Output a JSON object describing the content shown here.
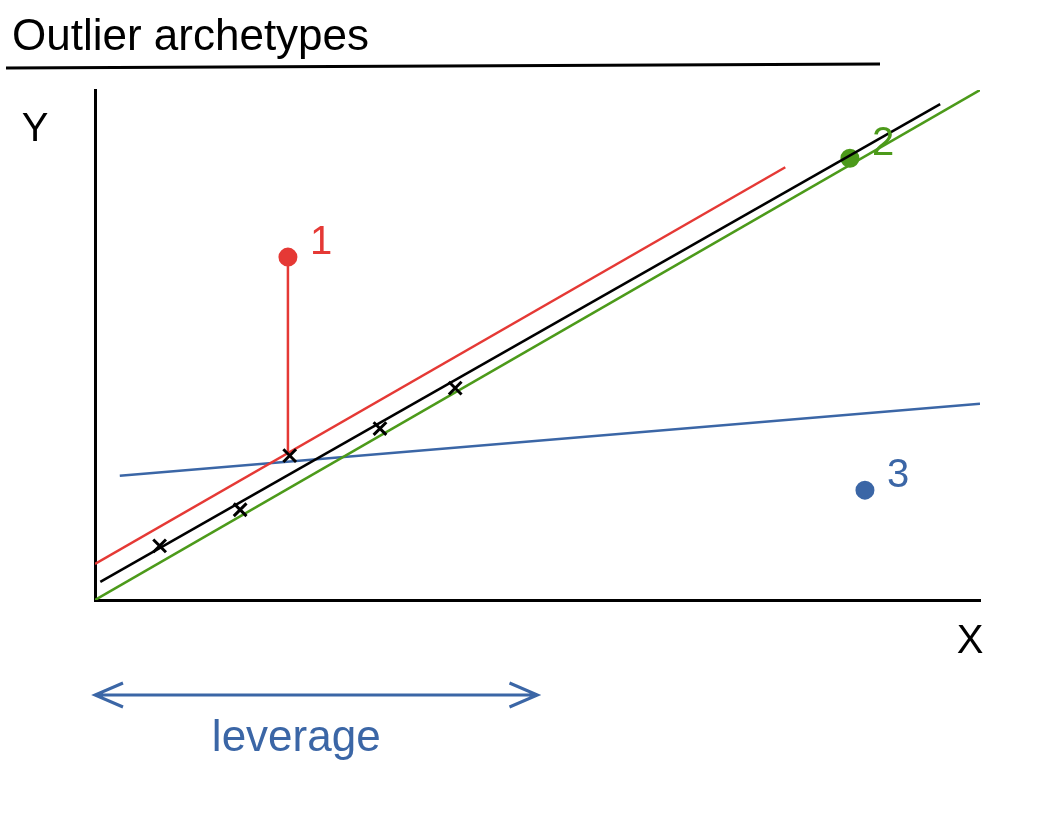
{
  "chart_data": {
    "type": "scatter",
    "title": "Outlier archetypes",
    "x_label": "X",
    "y_label": "Y",
    "xlim": [
      0,
      10
    ],
    "ylim": [
      0,
      13
    ],
    "grid": false,
    "tick_labels": false,
    "series": [
      {
        "color": "#000000",
        "marker": "x",
        "x": [
          0.73,
          1.64,
          2.2,
          3.22,
          4.07
        ],
        "values": [
          1.38,
          2.3,
          3.68,
          4.37,
          5.4
        ]
      },
      {
        "color": "#000000",
        "type": "line",
        "x": [
          0.06,
          9.55
        ],
        "values": [
          0.46,
          12.64
        ]
      },
      {
        "name": "1",
        "color": "#e53935",
        "marker": "circle",
        "x": [
          2.18
        ],
        "values": [
          8.74
        ]
      },
      {
        "color": "#e53935",
        "type": "line",
        "x": [
          2.18,
          2.18
        ],
        "values": [
          8.74,
          3.7
        ]
      },
      {
        "color": "#e53935",
        "type": "line",
        "x": [
          0,
          7.8
        ],
        "values": [
          0.92,
          11.03
        ]
      },
      {
        "name": "2",
        "color": "#4c9a1a",
        "marker": "circle",
        "x": [
          8.53
        ],
        "values": [
          11.26
        ]
      },
      {
        "color": "#4c9a1a",
        "type": "line",
        "x": [
          0,
          10
        ],
        "values": [
          0,
          13
        ]
      },
      {
        "name": "3",
        "color": "#3b66a6",
        "marker": "circle",
        "x": [
          8.7
        ],
        "values": [
          2.8
        ]
      },
      {
        "color": "#3b66a6",
        "type": "line",
        "x": [
          0.28,
          10
        ],
        "values": [
          3.17,
          5.0
        ]
      }
    ],
    "annotations": [
      {
        "text": "leverage",
        "x": [
          0,
          5
        ],
        "color": "#3b66a6"
      }
    ]
  }
}
